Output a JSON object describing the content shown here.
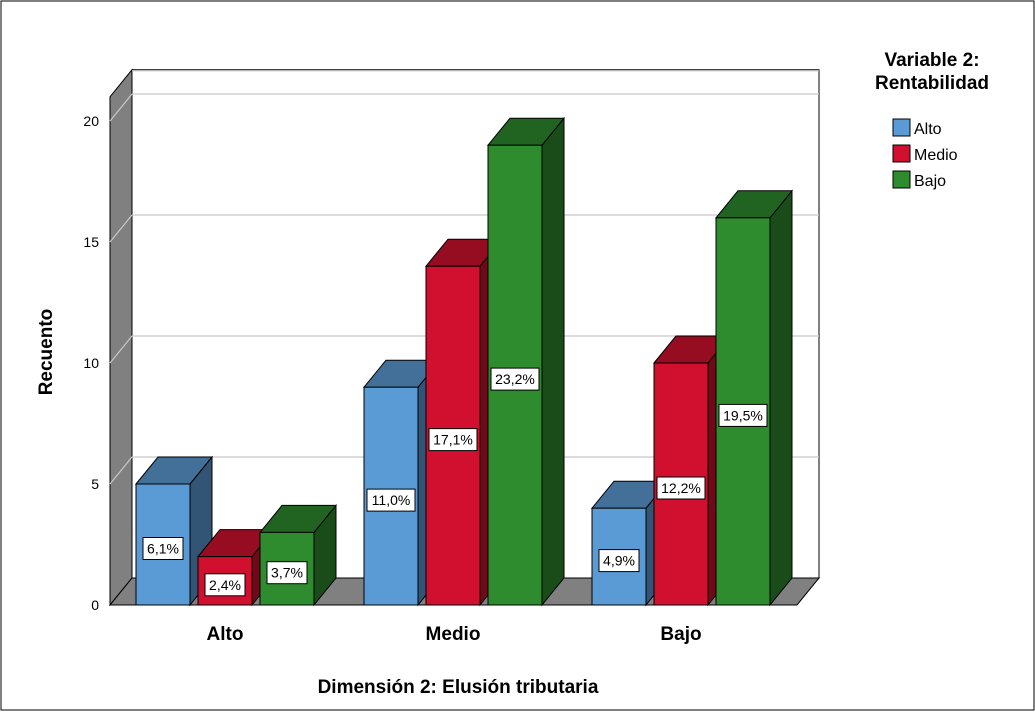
{
  "chart_data": {
    "type": "bar",
    "title": "",
    "xlabel": "Dimensión 2: Elusión tributaria",
    "ylabel": "Recuento",
    "ylim": [
      0,
      21
    ],
    "yticks": [
      "0",
      "5",
      "10",
      "15",
      "20"
    ],
    "categories": [
      "Alto",
      "Medio",
      "Bajo"
    ],
    "legend_title": "Variable 2:\nRentabilidad",
    "legend_title_lines": [
      "Variable 2:",
      "Rentabilidad"
    ],
    "legend_position": "top-right",
    "grid": true,
    "series": [
      {
        "name": "Alto",
        "values": [
          5,
          9,
          4
        ],
        "labels": [
          "6,1%",
          "11,0%",
          "4,9%"
        ],
        "color": "#5B9BD5"
      },
      {
        "name": "Medio",
        "values": [
          2,
          14,
          10
        ],
        "labels": [
          "2,4%",
          "17,1%",
          "12,2%"
        ],
        "color": "#D0102E"
      },
      {
        "name": "Bajo",
        "values": [
          3,
          19,
          16
        ],
        "labels": [
          "3,7%",
          "23,2%",
          "19,5%"
        ],
        "color": "#2E8B2E"
      }
    ]
  }
}
